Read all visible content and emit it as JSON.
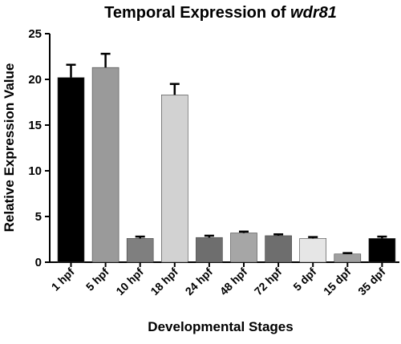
{
  "chart_data": {
    "type": "bar",
    "title_prefix": "Temporal Expression of ",
    "title_gene": "wdr81",
    "xlabel": "Developmental Stages",
    "ylabel": "Relative Expression Value",
    "ylim": [
      0,
      25
    ],
    "yticks": [
      "0",
      "5",
      "10",
      "15",
      "20",
      "25"
    ],
    "grid": false,
    "categories": [
      "1 hpf",
      "5 hpf",
      "10 hpf",
      "18 hpf",
      "24 hpf",
      "48 hpf",
      "72 hpf",
      "5 dpf",
      "15 dpf",
      "35 dpf"
    ],
    "values": [
      20.2,
      21.3,
      2.6,
      18.3,
      2.7,
      3.2,
      2.9,
      2.6,
      0.9,
      2.6
    ],
    "errors": [
      1.4,
      1.5,
      0.2,
      1.2,
      0.2,
      0.15,
      0.15,
      0.15,
      0.1,
      0.2
    ],
    "colors": [
      "#000000",
      "#9a9a9a",
      "#7f7f7f",
      "#d2d2d2",
      "#6e6e6e",
      "#a6a6a6",
      "#6e6e6e",
      "#e6e6e6",
      "#a0a0a0",
      "#000000"
    ]
  }
}
